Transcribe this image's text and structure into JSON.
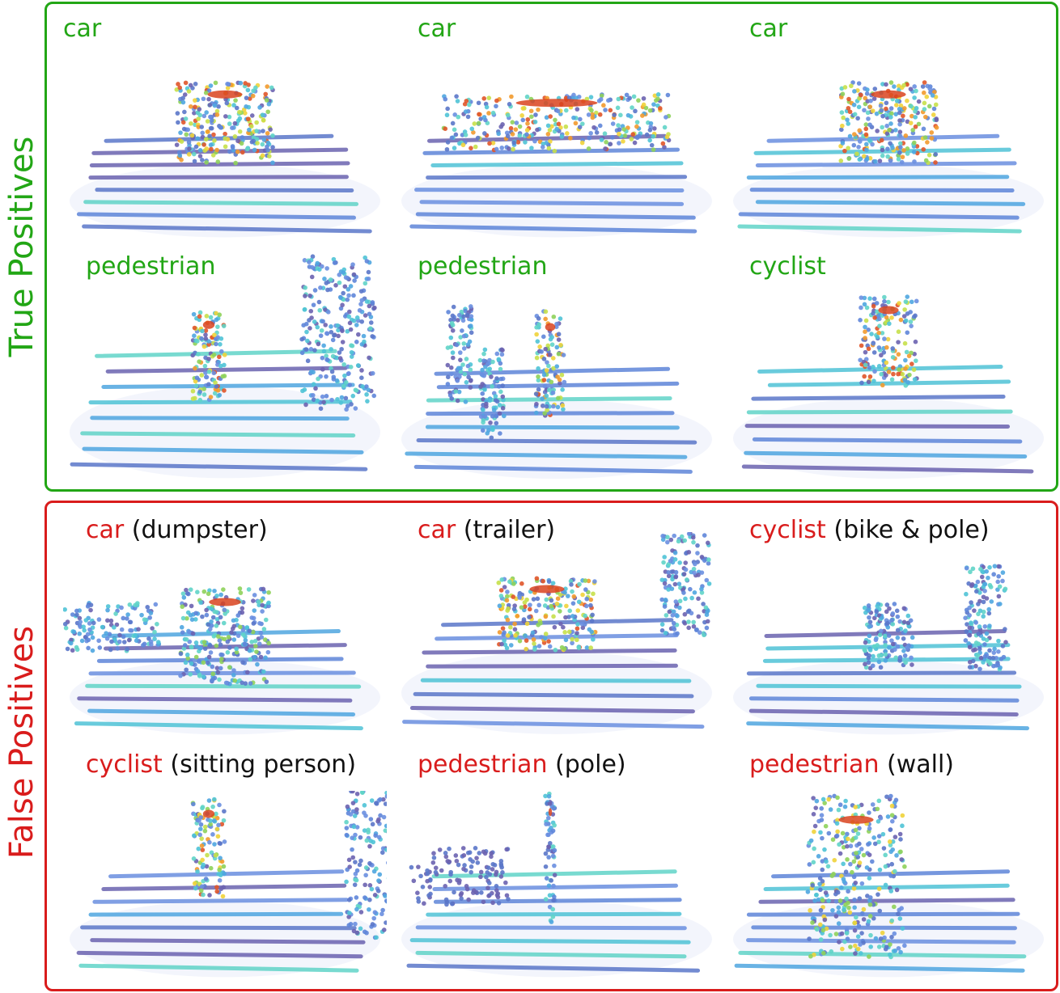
{
  "colors": {
    "true_positive": "#22a615",
    "false_positive": "#d91c1c",
    "text": "#111111"
  },
  "groups": [
    {
      "label": "True Positives",
      "color": "#22a615",
      "panels": [
        {
          "class_label": "car",
          "actual_label": "",
          "scene": "car-front"
        },
        {
          "class_label": "car",
          "actual_label": "",
          "scene": "car-side"
        },
        {
          "class_label": "car",
          "actual_label": "",
          "scene": "car-rear"
        },
        {
          "class_label": "pedestrian",
          "actual_label": "",
          "scene": "pedestrian-wall"
        },
        {
          "class_label": "pedestrian",
          "actual_label": "",
          "scene": "pedestrian-group"
        },
        {
          "class_label": "cyclist",
          "actual_label": "",
          "scene": "cyclist"
        }
      ]
    },
    {
      "label": "False Positives",
      "color": "#d91c1c",
      "panels": [
        {
          "class_label": "car",
          "actual_label": "(dumpster)",
          "scene": "dumpster"
        },
        {
          "class_label": "car",
          "actual_label": "(trailer)",
          "scene": "trailer"
        },
        {
          "class_label": "cyclist",
          "actual_label": "(bike & pole)",
          "scene": "bike-pole"
        },
        {
          "class_label": "cyclist",
          "actual_label": "(sitting person)",
          "scene": "sitting-person"
        },
        {
          "class_label": "pedestrian",
          "actual_label": "(pole)",
          "scene": "pole"
        },
        {
          "class_label": "pedestrian",
          "actual_label": "(wall)",
          "scene": "wall"
        }
      ]
    }
  ]
}
